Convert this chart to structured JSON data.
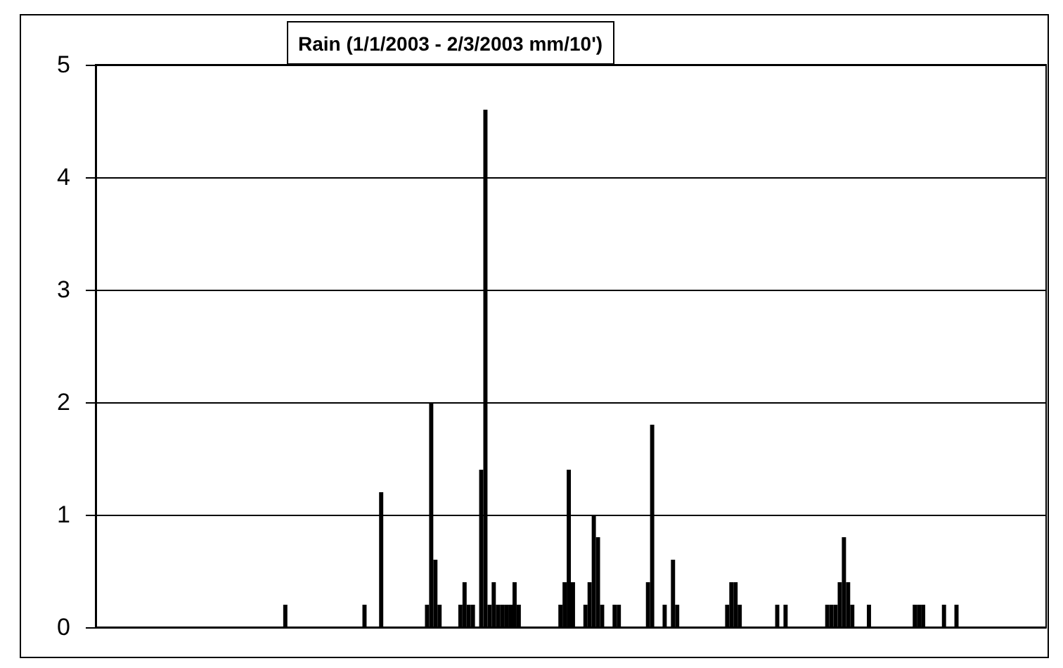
{
  "chart_data": {
    "type": "bar",
    "title": "Rain (1/1/2003 - 2/3/2003 mm/10')",
    "categories": [
      null,
      null,
      null,
      null,
      null,
      null,
      null,
      null,
      null,
      null,
      null,
      null,
      null,
      null,
      null,
      null,
      null,
      null,
      null,
      null,
      null,
      null,
      null,
      null,
      null,
      null,
      null,
      null,
      null,
      null,
      null,
      null,
      null,
      null,
      null,
      null,
      null,
      null,
      null,
      null,
      null,
      null,
      null,
      null,
      null,
      null,
      null,
      null,
      null,
      null,
      null,
      null,
      null,
      null,
      null,
      null,
      null,
      null,
      null,
      null,
      null,
      null,
      null,
      null,
      null,
      null,
      null,
      null,
      null,
      null,
      null,
      null,
      null,
      null,
      null,
      null,
      null,
      null,
      null,
      null,
      null,
      null,
      null,
      null,
      null,
      null,
      null,
      null,
      null,
      null,
      null,
      null,
      null,
      null,
      null,
      null,
      null,
      null,
      null,
      null,
      null,
      null,
      null,
      null,
      null,
      null,
      null,
      null,
      null,
      null,
      null,
      null,
      null,
      null,
      null,
      null,
      null,
      null,
      null,
      null,
      null,
      null,
      null,
      null,
      null,
      null,
      null,
      null,
      null,
      null,
      null,
      null,
      null,
      null,
      null,
      null,
      null,
      null,
      null,
      null,
      null,
      null,
      null,
      null,
      null,
      null,
      null,
      null,
      null,
      null,
      null,
      null,
      null,
      null,
      null,
      null,
      null,
      null,
      null,
      null,
      null,
      null,
      null,
      null,
      null,
      null,
      null,
      null,
      null,
      null,
      null,
      null,
      null,
      null,
      null,
      null,
      null,
      null,
      null,
      null,
      null,
      null,
      null,
      null,
      null,
      null,
      null,
      null,
      null,
      null,
      null,
      null,
      null,
      null,
      null,
      null,
      null,
      null,
      null,
      null,
      null,
      null,
      null,
      null,
      null,
      null,
      null,
      null,
      null,
      null,
      null,
      null,
      null,
      null,
      null,
      null,
      null,
      null,
      null,
      null,
      null,
      null,
      null,
      null,
      null,
      null,
      null,
      null
    ],
    "values": [
      null,
      null,
      null,
      null,
      null,
      null,
      null,
      null,
      null,
      null,
      null,
      null,
      null,
      null,
      null,
      null,
      null,
      null,
      null,
      null,
      null,
      null,
      null,
      null,
      null,
      null,
      null,
      null,
      null,
      null,
      null,
      null,
      null,
      null,
      null,
      null,
      null,
      null,
      null,
      null,
      null,
      null,
      null,
      null,
      null,
      0.2,
      null,
      null,
      null,
      null,
      null,
      null,
      null,
      null,
      null,
      null,
      null,
      null,
      null,
      null,
      null,
      null,
      null,
      null,
      0.2,
      null,
      null,
      null,
      1.2,
      null,
      null,
      null,
      null,
      null,
      null,
      null,
      null,
      null,
      null,
      0.2,
      2.0,
      0.6,
      0.2,
      null,
      null,
      null,
      null,
      0.2,
      0.4,
      0.2,
      0.2,
      null,
      1.4,
      4.6,
      0.2,
      0.4,
      0.2,
      0.2,
      0.2,
      0.2,
      0.4,
      0.2,
      null,
      null,
      null,
      null,
      null,
      null,
      null,
      null,
      null,
      0.2,
      0.4,
      1.4,
      0.4,
      null,
      null,
      0.2,
      0.4,
      1.0,
      0.8,
      0.2,
      null,
      null,
      0.2,
      0.2,
      null,
      null,
      null,
      null,
      null,
      null,
      0.4,
      1.8,
      null,
      null,
      0.2,
      null,
      0.6,
      0.2,
      null,
      null,
      null,
      null,
      null,
      null,
      null,
      null,
      null,
      null,
      null,
      0.2,
      0.4,
      0.4,
      0.2,
      null,
      null,
      null,
      null,
      null,
      null,
      null,
      null,
      0.2,
      null,
      0.2,
      null,
      null,
      null,
      null,
      null,
      null,
      null,
      null,
      null,
      0.2,
      0.2,
      0.2,
      0.4,
      0.8,
      0.4,
      0.2,
      null,
      null,
      null,
      0.2,
      null,
      null,
      null,
      null,
      null,
      null,
      null,
      null,
      null,
      null,
      0.2,
      0.2,
      0.2,
      null,
      null,
      null,
      null,
      0.2,
      null,
      null,
      0.2,
      null,
      null,
      null,
      null,
      null,
      null,
      null,
      null,
      null,
      null,
      null,
      null,
      null,
      null,
      null,
      null,
      null,
      null,
      null,
      null,
      null
    ],
    "color": "#000000",
    "ylim": [
      0,
      5
    ],
    "yticks": [
      0,
      1,
      2,
      3,
      4,
      5
    ],
    "grid": "y",
    "tick_labels": "y"
  }
}
